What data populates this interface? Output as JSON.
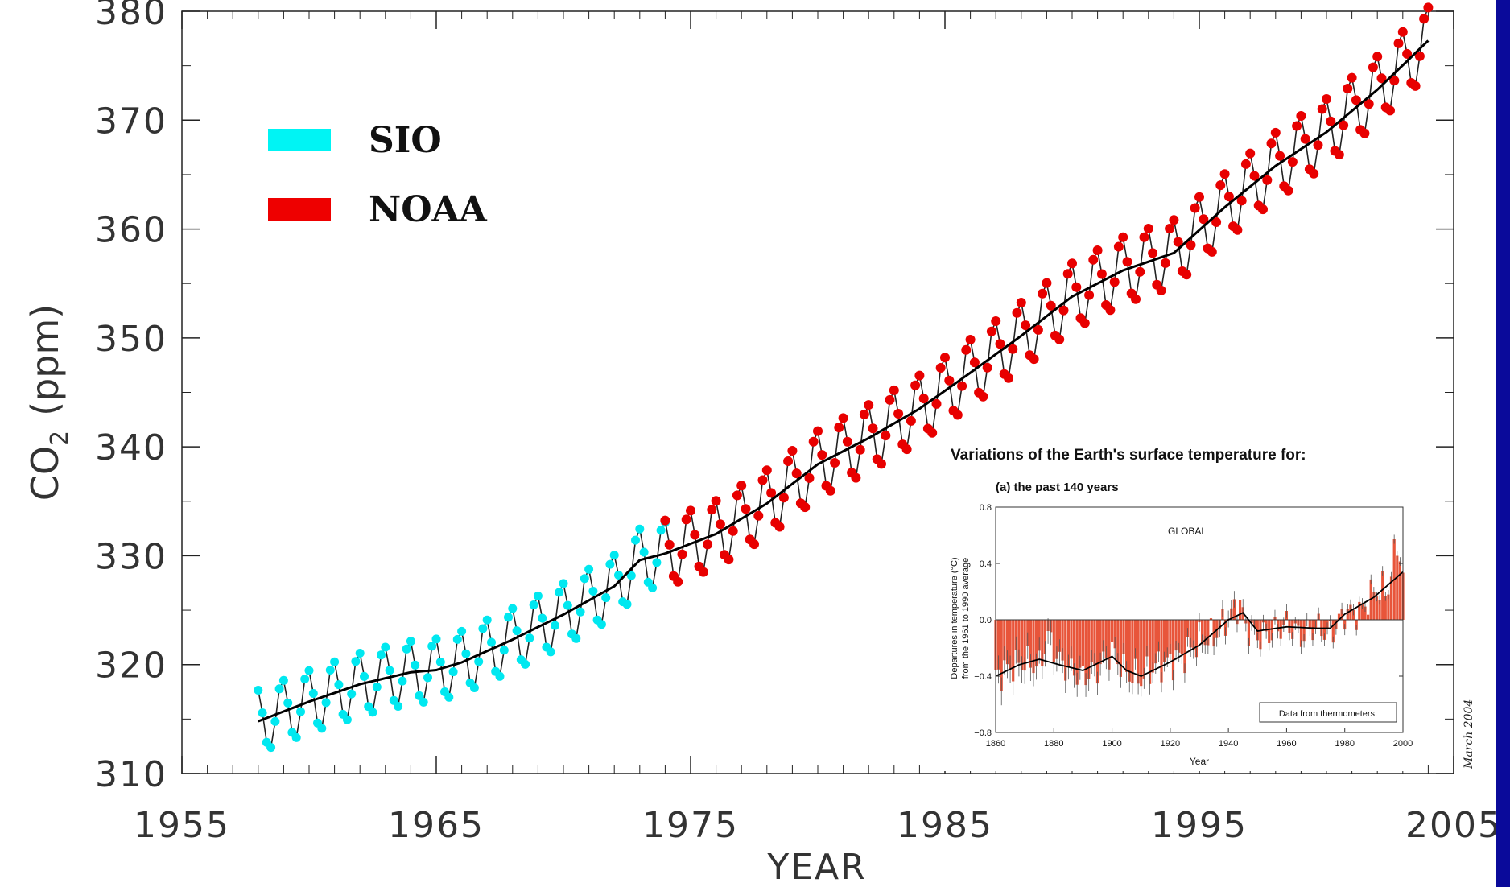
{
  "chart_data": [
    {
      "type": "line",
      "ylabel_main": "CO",
      "ylabel_sub": "2",
      "ylabel_unit": "(ppm)",
      "xlabel": "YEAR",
      "xlim": [
        1955,
        2005
      ],
      "ylim": [
        310,
        380
      ],
      "x_ticks": [
        "1955",
        "1965",
        "1975",
        "1985",
        "1995",
        "2005"
      ],
      "y_ticks": [
        "310",
        "320",
        "330",
        "340",
        "350",
        "360",
        "370",
        "380"
      ],
      "legend_position": "top-left",
      "series": [
        {
          "name": "SIO",
          "color": "#00e8f0",
          "x_range": [
            1958.0,
            1974.0
          ],
          "trend": [
            [
              1958,
              314.8
            ],
            [
              1960,
              316.6
            ],
            [
              1962,
              318.2
            ],
            [
              1964,
              319.3
            ],
            [
              1965,
              319.5
            ],
            [
              1966,
              320.2
            ],
            [
              1968,
              322.3
            ],
            [
              1970,
              324.6
            ],
            [
              1972,
              327.2
            ],
            [
              1973,
              329.6
            ],
            [
              1974,
              330.2
            ]
          ],
          "seasonal_amplitude": 3.0
        },
        {
          "name": "NOAA",
          "color": "#e80000",
          "x_range": [
            1974.0,
            2004.0
          ],
          "trend": [
            [
              1974,
              330.2
            ],
            [
              1976,
              332.0
            ],
            [
              1978,
              334.8
            ],
            [
              1980,
              338.4
            ],
            [
              1982,
              340.8
            ],
            [
              1984,
              343.5
            ],
            [
              1986,
              346.8
            ],
            [
              1988,
              350.2
            ],
            [
              1990,
              353.8
            ],
            [
              1992,
              356.2
            ],
            [
              1994,
              357.8
            ],
            [
              1996,
              362.0
            ],
            [
              1998,
              365.8
            ],
            [
              2000,
              368.9
            ],
            [
              2002,
              372.8
            ],
            [
              2004,
              377.3
            ]
          ],
          "seasonal_amplitude": 3.2
        }
      ],
      "trend_line_color": "#000000"
    },
    {
      "type": "bar",
      "title": "Variations of the Earth's surface temperature for:",
      "subtitle": "(a) the past 140 years",
      "panel_label": "GLOBAL",
      "ylabel_line1": "Departures in temperature (°C)",
      "ylabel_line2": "from the 1961 to 1990 average",
      "xlabel": "Year",
      "xlim": [
        1860,
        2000
      ],
      "ylim": [
        -0.8,
        0.8
      ],
      "x_ticks": [
        "1860",
        "1880",
        "1900",
        "1920",
        "1940",
        "1960",
        "1980",
        "2000"
      ],
      "y_ticks": [
        "0.8",
        "0.4",
        "0.0",
        "−0.4",
        "−0.8"
      ],
      "box_note": "Data from thermometers.",
      "bar_color": "#e8553a",
      "smooth_color": "#000000",
      "anomaly_keypoints": [
        [
          1860,
          -0.4
        ],
        [
          1865,
          -0.34
        ],
        [
          1870,
          -0.3
        ],
        [
          1875,
          -0.33
        ],
        [
          1878,
          -0.12
        ],
        [
          1882,
          -0.3
        ],
        [
          1885,
          -0.35
        ],
        [
          1890,
          -0.4
        ],
        [
          1895,
          -0.35
        ],
        [
          1900,
          -0.22
        ],
        [
          1905,
          -0.38
        ],
        [
          1910,
          -0.42
        ],
        [
          1915,
          -0.33
        ],
        [
          1920,
          -0.3
        ],
        [
          1925,
          -0.25
        ],
        [
          1930,
          -0.15
        ],
        [
          1935,
          -0.12
        ],
        [
          1940,
          0.02
        ],
        [
          1944,
          0.12
        ],
        [
          1946,
          -0.05
        ],
        [
          1950,
          -0.12
        ],
        [
          1955,
          -0.1
        ],
        [
          1960,
          -0.03
        ],
        [
          1965,
          -0.12
        ],
        [
          1970,
          -0.05
        ],
        [
          1975,
          -0.1
        ],
        [
          1980,
          0.05
        ],
        [
          1985,
          0.05
        ],
        [
          1990,
          0.2
        ],
        [
          1995,
          0.22
        ],
        [
          1998,
          0.55
        ],
        [
          2000,
          0.32
        ]
      ],
      "smooth_keypoints": [
        [
          1860,
          -0.4
        ],
        [
          1868,
          -0.32
        ],
        [
          1875,
          -0.28
        ],
        [
          1882,
          -0.32
        ],
        [
          1890,
          -0.36
        ],
        [
          1900,
          -0.26
        ],
        [
          1905,
          -0.36
        ],
        [
          1910,
          -0.4
        ],
        [
          1920,
          -0.3
        ],
        [
          1930,
          -0.18
        ],
        [
          1940,
          0.0
        ],
        [
          1945,
          0.05
        ],
        [
          1950,
          -0.08
        ],
        [
          1960,
          -0.05
        ],
        [
          1970,
          -0.06
        ],
        [
          1975,
          -0.06
        ],
        [
          1980,
          0.04
        ],
        [
          1990,
          0.16
        ],
        [
          2000,
          0.34
        ]
      ]
    }
  ],
  "side_note": "March 2004"
}
